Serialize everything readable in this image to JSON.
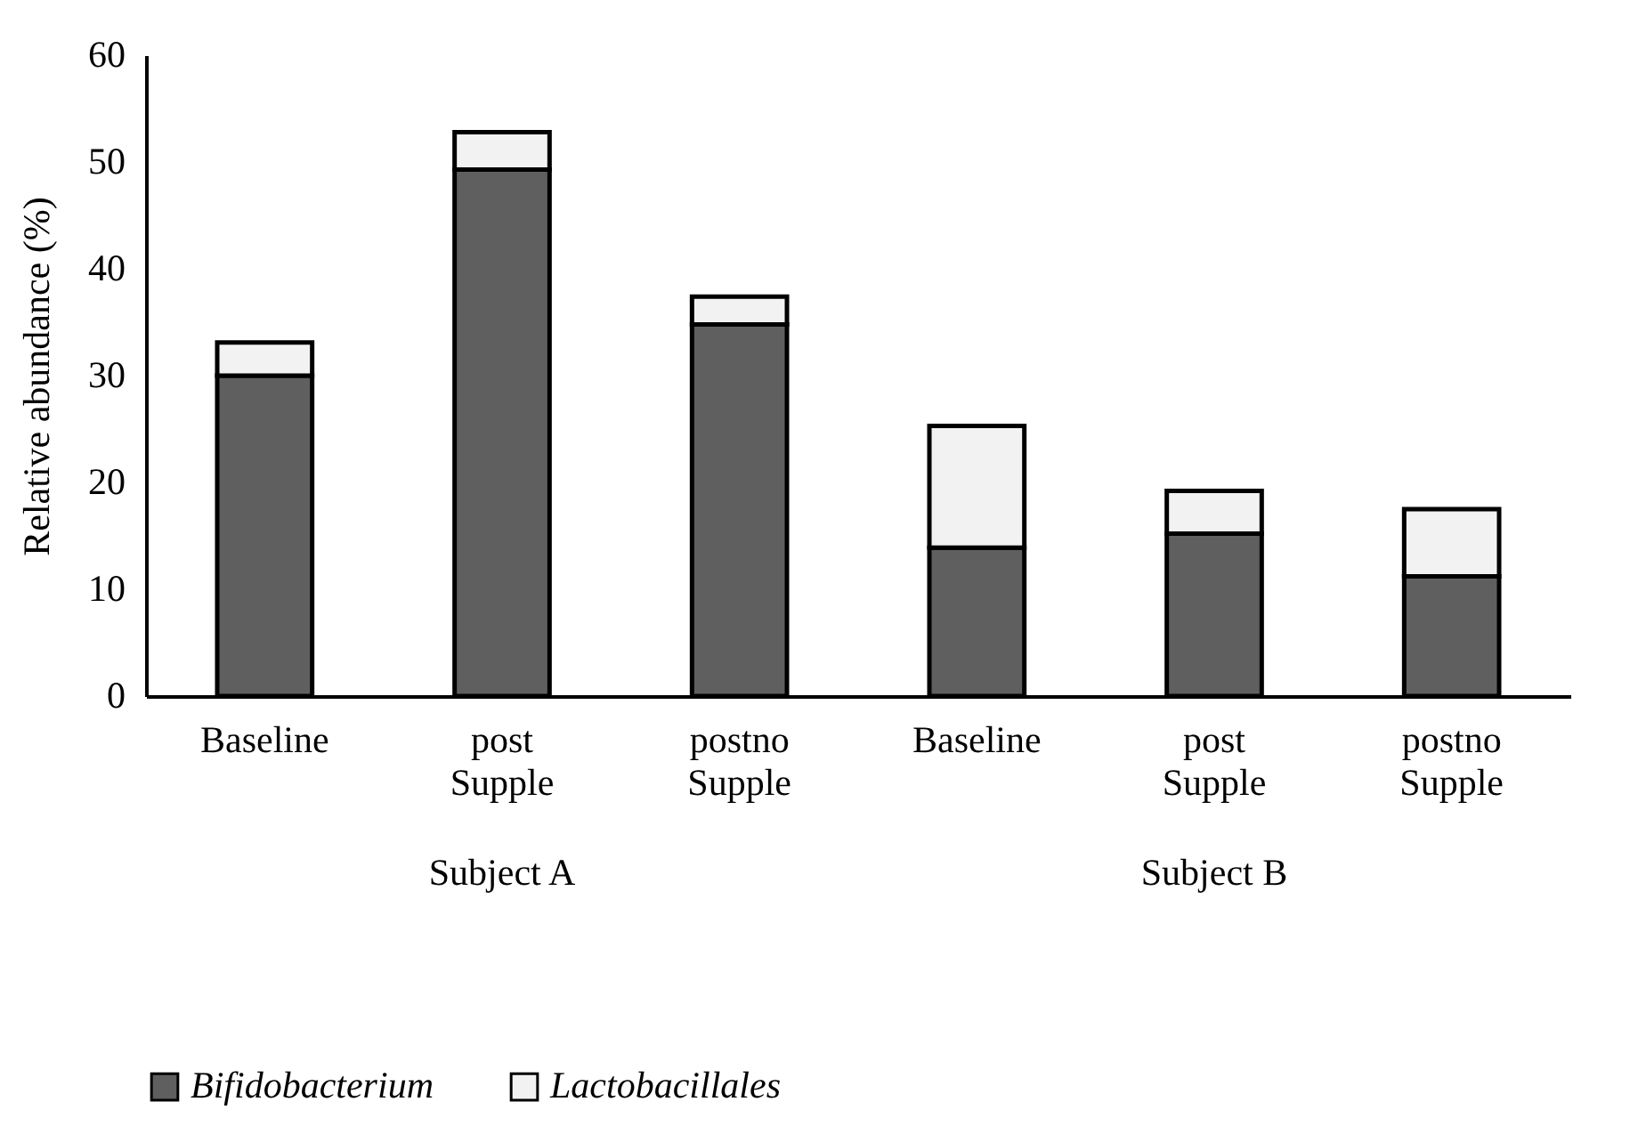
{
  "chart_data": {
    "type": "bar",
    "stacked": true,
    "ylabel": "Relative abundance (%)",
    "categories": [
      "Baseline",
      "post Supple",
      "postno Supple",
      "Baseline",
      "post Supple",
      "postno Supple"
    ],
    "series": [
      {
        "name": "Bifidobacterium",
        "color": "#5f5f5f",
        "values": [
          30,
          49.3,
          34.8,
          13.9,
          15.2,
          11.2
        ]
      },
      {
        "name": "Lactobacillales",
        "color": "#f2f2f2",
        "values": [
          3.1,
          3.5,
          2.6,
          11.4,
          4.0,
          6.3
        ]
      }
    ],
    "annotations": [
      "Subject A",
      "Subject B"
    ],
    "ylim": [
      0,
      60
    ],
    "yticks": [
      0,
      10,
      20,
      30,
      40,
      50,
      60
    ],
    "grid": false,
    "legend": "bottom"
  }
}
